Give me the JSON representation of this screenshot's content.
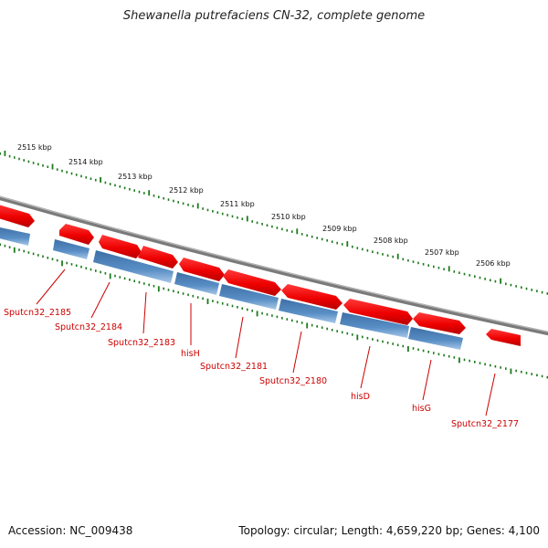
{
  "title": "Shewanella putrefaciens CN-32, complete genome",
  "footer": {
    "accession": "Accession: NC_009438",
    "summary": "Topology: circular; Length: 4,659,220 bp; Genes: 4,100"
  },
  "colors": {
    "backbone": "#8c8c8c",
    "forward_gene": "#ff1a1a",
    "reverse_gene": "#4f82b8",
    "tick": "#1a7a1a",
    "gene_label": "#cc0000",
    "kbp_label": "#111111"
  },
  "scale_labels": [
    "2515 kbp",
    "2514 kbp",
    "2513 kbp",
    "2512 kbp",
    "2511 kbp",
    "2510 kbp",
    "2509 kbp",
    "2508 kbp",
    "2507 kbp",
    "2506 kbp"
  ],
  "gene_labels": [
    "Sputcn32_2185",
    "Sputcn32_2184",
    "Sputcn32_2183",
    "hisH",
    "Sputcn32_2181",
    "Sputcn32_2180",
    "hisD",
    "hisG",
    "Sputcn32_2177"
  ]
}
